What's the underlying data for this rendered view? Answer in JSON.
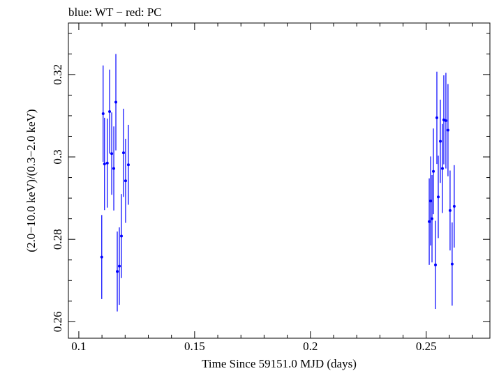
{
  "chart_data": {
    "type": "scatter",
    "title": "blue: WT − red: PC",
    "xlabel": "Time Since 59151.0 MJD (days)",
    "ylabel": "(2.0−10.0 keV)/(0.3−2.0 keV)",
    "xlim": [
      0.0955,
      0.2775
    ],
    "ylim": [
      0.256,
      0.3325
    ],
    "x_ticks": [
      0.1,
      0.15,
      0.2,
      0.25
    ],
    "x_tick_labels": [
      "0.1",
      "0.15",
      "0.2",
      "0.25"
    ],
    "y_ticks": [
      0.26,
      0.28,
      0.3,
      0.32
    ],
    "y_tick_labels": [
      "0.26",
      "0.28",
      "0.3",
      "0.32"
    ],
    "grid": false,
    "series": [
      {
        "name": "WT",
        "color": "#0000ff",
        "points": [
          {
            "x": 0.1099,
            "y": 0.2757,
            "err": 0.0102
          },
          {
            "x": 0.1105,
            "y": 0.3105,
            "err": 0.0117
          },
          {
            "x": 0.1111,
            "y": 0.2983,
            "err": 0.0112
          },
          {
            "x": 0.1123,
            "y": 0.2985,
            "err": 0.0108
          },
          {
            "x": 0.1133,
            "y": 0.311,
            "err": 0.0102
          },
          {
            "x": 0.1142,
            "y": 0.3008,
            "err": 0.01
          },
          {
            "x": 0.1151,
            "y": 0.2972,
            "err": 0.0102
          },
          {
            "x": 0.116,
            "y": 0.3133,
            "err": 0.0117
          },
          {
            "x": 0.1166,
            "y": 0.2722,
            "err": 0.0097
          },
          {
            "x": 0.1175,
            "y": 0.2735,
            "err": 0.0094
          },
          {
            "x": 0.1184,
            "y": 0.2808,
            "err": 0.0102
          },
          {
            "x": 0.1193,
            "y": 0.301,
            "err": 0.0107
          },
          {
            "x": 0.1202,
            "y": 0.2942,
            "err": 0.0102
          },
          {
            "x": 0.1214,
            "y": 0.2981,
            "err": 0.0097
          },
          {
            "x": 0.2513,
            "y": 0.2843,
            "err": 0.0105
          },
          {
            "x": 0.2519,
            "y": 0.2893,
            "err": 0.0108
          },
          {
            "x": 0.2525,
            "y": 0.285,
            "err": 0.0106
          },
          {
            "x": 0.2531,
            "y": 0.2965,
            "err": 0.0104
          },
          {
            "x": 0.254,
            "y": 0.2738,
            "err": 0.0107
          },
          {
            "x": 0.2546,
            "y": 0.3095,
            "err": 0.0112
          },
          {
            "x": 0.2552,
            "y": 0.2903,
            "err": 0.01
          },
          {
            "x": 0.2561,
            "y": 0.3038,
            "err": 0.0101
          },
          {
            "x": 0.257,
            "y": 0.2972,
            "err": 0.0108
          },
          {
            "x": 0.2576,
            "y": 0.309,
            "err": 0.0108
          },
          {
            "x": 0.2585,
            "y": 0.3088,
            "err": 0.0116
          },
          {
            "x": 0.2594,
            "y": 0.3065,
            "err": 0.0112
          },
          {
            "x": 0.2603,
            "y": 0.287,
            "err": 0.0097
          },
          {
            "x": 0.2612,
            "y": 0.274,
            "err": 0.0101
          },
          {
            "x": 0.2621,
            "y": 0.288,
            "err": 0.01
          }
        ]
      }
    ]
  }
}
